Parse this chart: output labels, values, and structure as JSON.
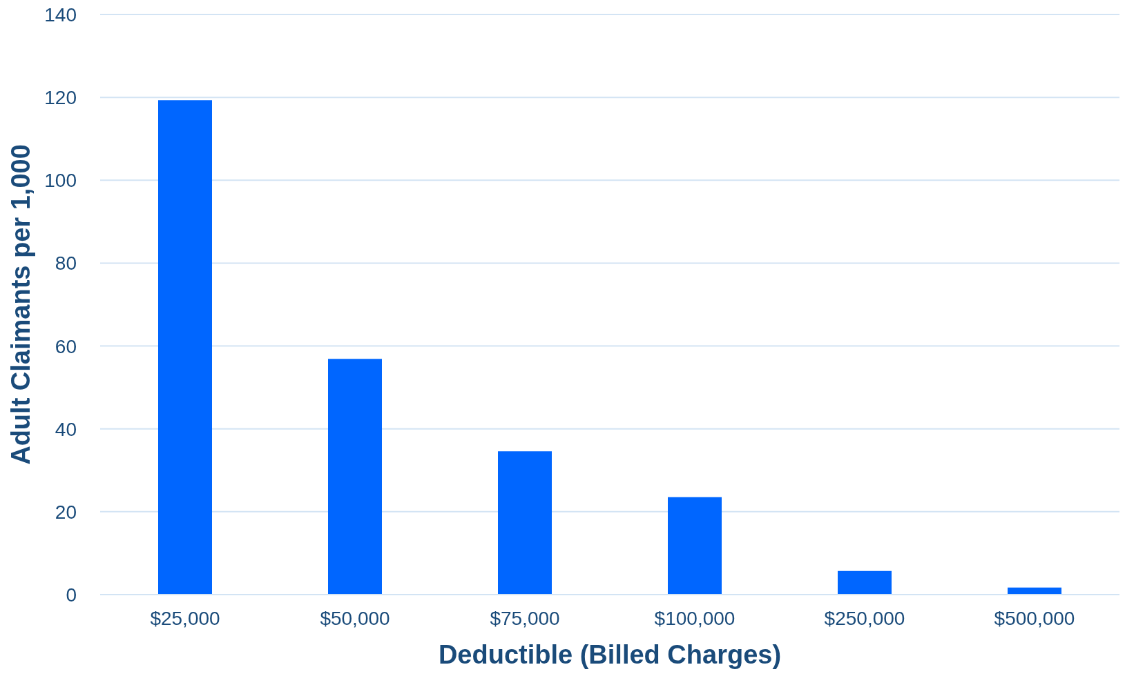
{
  "chart_data": {
    "type": "bar",
    "xlabel": "Deductible (Billed Charges)",
    "ylabel": "Adult Claimants per 1,000",
    "categories": [
      "$25,000",
      "$50,000",
      "$75,000",
      "$100,000",
      "$250,000",
      "$500,000"
    ],
    "values": [
      119.3,
      56.9,
      34.6,
      23.5,
      5.7,
      1.7
    ],
    "color": "#0066ff",
    "ylim": [
      0,
      140
    ],
    "yticks": [
      0,
      20,
      40,
      60,
      80,
      100,
      120,
      140
    ],
    "grid": "y"
  }
}
